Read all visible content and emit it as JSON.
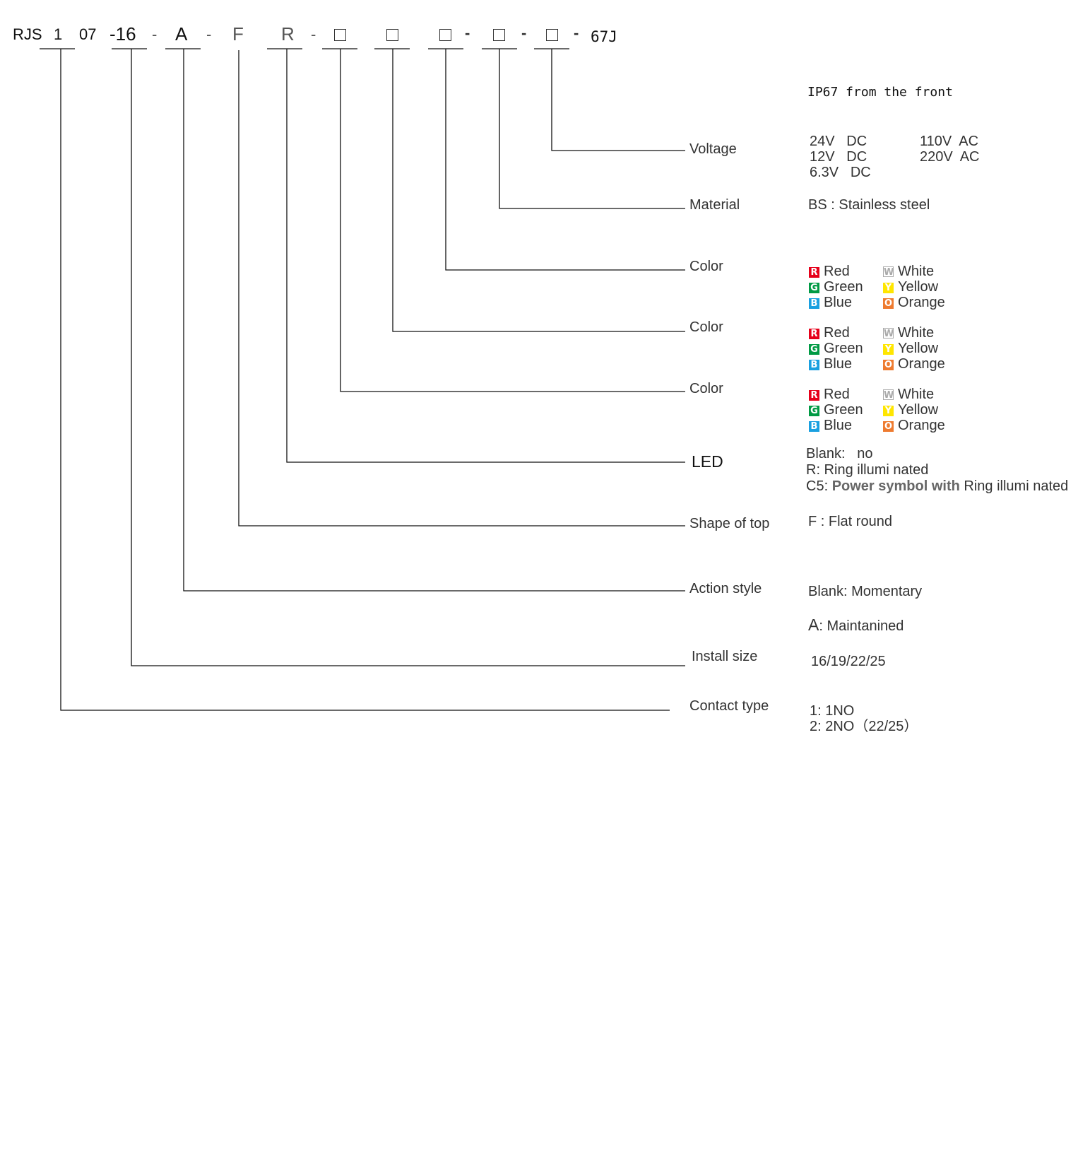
{
  "model_code": {
    "parts": {
      "prefix": "RJS",
      "contact_type": "1",
      "series": "07",
      "install_size": "-16",
      "action_style": "A",
      "top_shape": "F",
      "led": "R",
      "suffix": "67J"
    },
    "separators": {
      "dash": "-",
      "bold_dash": "-"
    },
    "blank_box_symbol": "□"
  },
  "fields": {
    "ip_rating": {
      "desc": "IP67 from the front"
    },
    "voltage": {
      "label": "Voltage",
      "dc_lines": "24V   DC\n12V   DC\n6.3V   DC",
      "ac_lines": "110V  AC\n220V  AC"
    },
    "material": {
      "label": "Material",
      "desc": "BS : Stainless steel"
    },
    "color_1": {
      "label": "Color"
    },
    "color_2": {
      "label": "Color"
    },
    "color_3": {
      "label": "Color"
    },
    "led": {
      "label": "LED",
      "line1_key": "Blank:",
      "line1_val": "no",
      "line2": "R: Ring illumi nated",
      "line3_key": "C5:",
      "line3_bold": "Power symbol with",
      "line3_rest": "Ring illumi nated"
    },
    "shape_of_top": {
      "label": "Shape of top",
      "desc": "F : Flat round"
    },
    "action_style": {
      "label": "Action style",
      "line1": "Blank: Momentary",
      "line2_key": "A",
      "line2_val": ": Maintanined"
    },
    "install_size": {
      "label": "Install size",
      "desc": "16/19/22/25"
    },
    "contact_type": {
      "label": "Contact type",
      "line1": "1: 1NO",
      "line2": "2: 2NO（22/25）"
    }
  },
  "color_options": [
    {
      "code": "R",
      "name": "Red",
      "swatch": "#e6001a"
    },
    {
      "code": "G",
      "name": "Green",
      "swatch": "#009a44"
    },
    {
      "code": "B",
      "name": "Blue",
      "swatch": "#1aa0e0"
    },
    {
      "code": "W",
      "name": "White",
      "swatch": "#ffffff"
    },
    {
      "code": "Y",
      "name": "Yellow",
      "swatch": "#ffe600"
    },
    {
      "code": "O",
      "name": "Orange",
      "swatch": "#ee7b30"
    }
  ]
}
